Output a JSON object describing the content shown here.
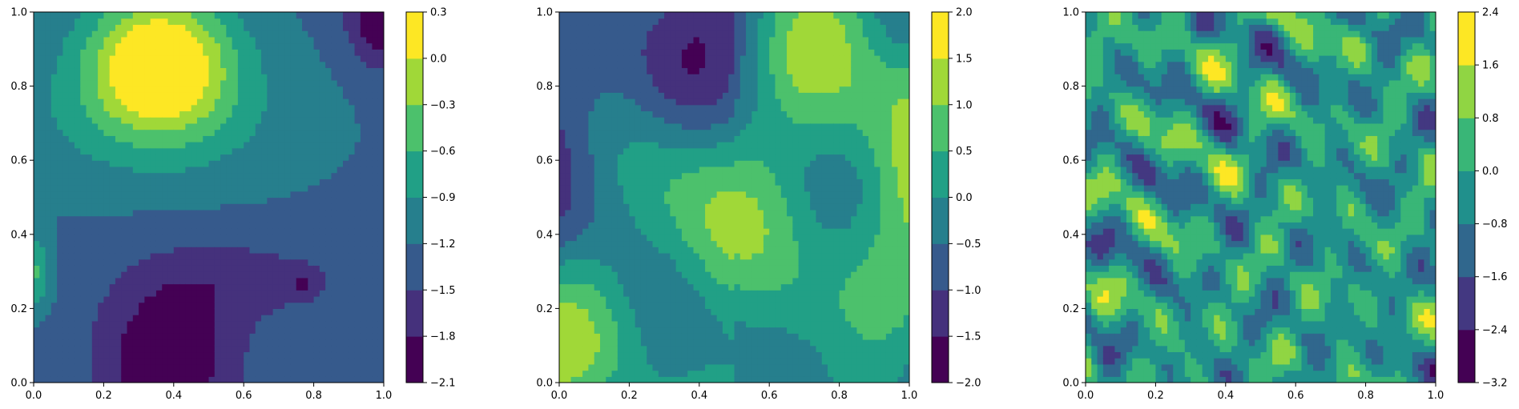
{
  "chart_data": [
    {
      "type": "contour",
      "title": "",
      "xlabel": "",
      "ylabel": "",
      "xlim": [
        0.0,
        1.0
      ],
      "ylim": [
        0.0,
        1.0
      ],
      "xticks": [
        "0.0",
        "0.2",
        "0.4",
        "0.6",
        "0.8",
        "1.0"
      ],
      "yticks": [
        "0.0",
        "0.2",
        "0.4",
        "0.6",
        "0.8",
        "1.0"
      ],
      "colormap": "viridis",
      "levels": [
        -2.1,
        -1.8,
        -1.5,
        -1.2,
        -0.9,
        -0.6,
        -0.3,
        0.0,
        0.3
      ],
      "colorbar_ticks": [
        "−2.1",
        "−1.8",
        "−1.5",
        "−1.2",
        "−0.9",
        "−0.6",
        "−0.3",
        "0.0",
        "0.3"
      ],
      "smoothness": "coarse"
    },
    {
      "type": "contour",
      "title": "",
      "xlabel": "",
      "ylabel": "",
      "xlim": [
        0.0,
        1.0
      ],
      "ylim": [
        0.0,
        1.0
      ],
      "xticks": [
        "0.0",
        "0.2",
        "0.4",
        "0.6",
        "0.8",
        "1.0"
      ],
      "yticks": [
        "0.0",
        "0.2",
        "0.4",
        "0.6",
        "0.8",
        "1.0"
      ],
      "colormap": "viridis",
      "levels": [
        -2.0,
        -1.5,
        -1.0,
        -0.5,
        0.0,
        0.5,
        1.0,
        1.5,
        2.0
      ],
      "colorbar_ticks": [
        "−2.0",
        "−1.5",
        "−1.0",
        "−0.5",
        "0.0",
        "0.5",
        "1.0",
        "1.5",
        "2.0"
      ],
      "smoothness": "medium"
    },
    {
      "type": "contour",
      "title": "",
      "xlabel": "",
      "ylabel": "",
      "xlim": [
        0.0,
        1.0
      ],
      "ylim": [
        0.0,
        1.0
      ],
      "xticks": [
        "0.0",
        "0.2",
        "0.4",
        "0.6",
        "0.8",
        "1.0"
      ],
      "yticks": [
        "0.0",
        "0.2",
        "0.4",
        "0.6",
        "0.8",
        "1.0"
      ],
      "colormap": "viridis",
      "levels": [
        -3.2,
        -2.4,
        -1.6,
        -0.8,
        0.0,
        0.8,
        1.6,
        2.4
      ],
      "colorbar_ticks": [
        "−3.2",
        "−2.4",
        "−1.6",
        "−0.8",
        "0.0",
        "0.8",
        "1.6",
        "2.4"
      ],
      "smoothness": "fine"
    }
  ]
}
